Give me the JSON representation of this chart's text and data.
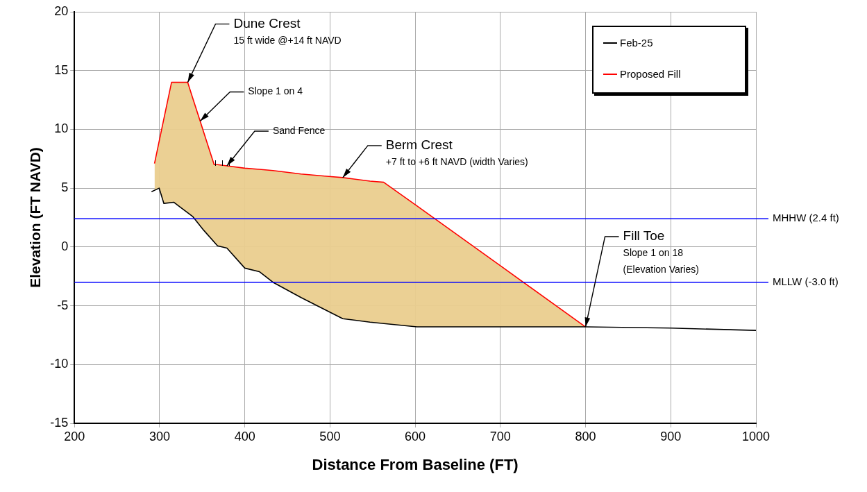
{
  "chart_data": {
    "type": "line",
    "xlabel": "Distance From Baseline (FT)",
    "ylabel": "Elevation (FT NAVD)",
    "xlim": [
      200,
      1000
    ],
    "xticks": [
      200,
      300,
      400,
      500,
      600,
      700,
      800,
      900,
      1000
    ],
    "ylim": [
      -15,
      20
    ],
    "yticks": [
      -15,
      -10,
      -5,
      0,
      5,
      10,
      15,
      20
    ],
    "grid": true,
    "legend": "top right",
    "marker": "none",
    "line_style": "solid",
    "series": [
      {
        "name": "Feb-25",
        "color": "#000000",
        "x": [
          290.5,
          299.5,
          305,
          316.6,
          338.7,
          352,
          368,
          379,
          400,
          417,
          433,
          466,
          498.5,
          515,
          547,
          602,
          700,
          800,
          900,
          1000
        ],
        "values": [
          4.7,
          5.0,
          3.7,
          3.8,
          2.6,
          1.4,
          0.1,
          -0.1,
          -1.8,
          -2.1,
          -3.0,
          -4.3,
          -5.5,
          -6.1,
          -6.4,
          -6.8,
          -6.8,
          -6.8,
          -6.9,
          -7.1
        ]
      },
      {
        "name": "Proposed Fill",
        "color": "#ff0000",
        "x": [
          294,
          299.5,
          305,
          314,
          316.6,
          333,
          338.7,
          347.6,
          352,
          364,
          368,
          379,
          400,
          417,
          433,
          466,
          498.5,
          515,
          547,
          563,
          602,
          700,
          800
        ],
        "values": [
          7.1,
          9.0,
          10.9,
          14,
          14,
          14,
          12.7,
          10.7,
          9.7,
          7,
          7.0,
          6.9,
          6.7,
          6.6,
          6.5,
          6.2,
          6.0,
          5.9,
          5.6,
          5.5,
          3.5,
          -1.6,
          -6.8
        ],
        "upper": [
          7.1,
          9.0,
          10.9,
          14,
          14,
          14,
          12.7,
          10.7,
          9.7,
          7,
          7.0,
          6.9,
          6.7,
          6.6,
          6.5,
          6.2,
          6.0,
          5.9,
          5.6,
          5.5,
          3.5,
          -1.6,
          -6.8
        ],
        "lower": [
          4.8,
          5.0,
          3.7,
          3.8,
          3.8,
          2.9,
          2.6,
          1.8,
          1.4,
          0.4,
          0.1,
          -0.1,
          -1.8,
          -2.1,
          -3.0,
          -4.3,
          -5.5,
          -6.1,
          -6.4,
          -6.5,
          -6.8,
          -6.8,
          -6.8
        ]
      }
    ],
    "ref_lines": [
      {
        "axis": "y",
        "value": 2.4,
        "label": "MHHW (2.4 ft)",
        "color": "#0000ff"
      },
      {
        "axis": "y",
        "value": -3.0,
        "label": "MLLW (-3.0 ft)",
        "color": "#0000ff"
      }
    ],
    "annotations": [
      {
        "text": "Dune Crest",
        "x": 333,
        "y": 14
      },
      "15 ft wide @+14 ft NAVD",
      {
        "text": "Slope 1 on 4",
        "x": 347.6,
        "y": 10.7
      },
      {
        "text": "Sand Fence",
        "x": 379,
        "y": 6.9
      },
      {
        "text": "Berm Crest",
        "x": 515,
        "y": 5.9
      },
      "+7 ft to +6 ft NAVD (width Varies)",
      {
        "text": "Fill Toe",
        "x": 800,
        "y": -6.8
      },
      "Slope 1 on 18",
      "(Elevation Varies)"
    ]
  }
}
